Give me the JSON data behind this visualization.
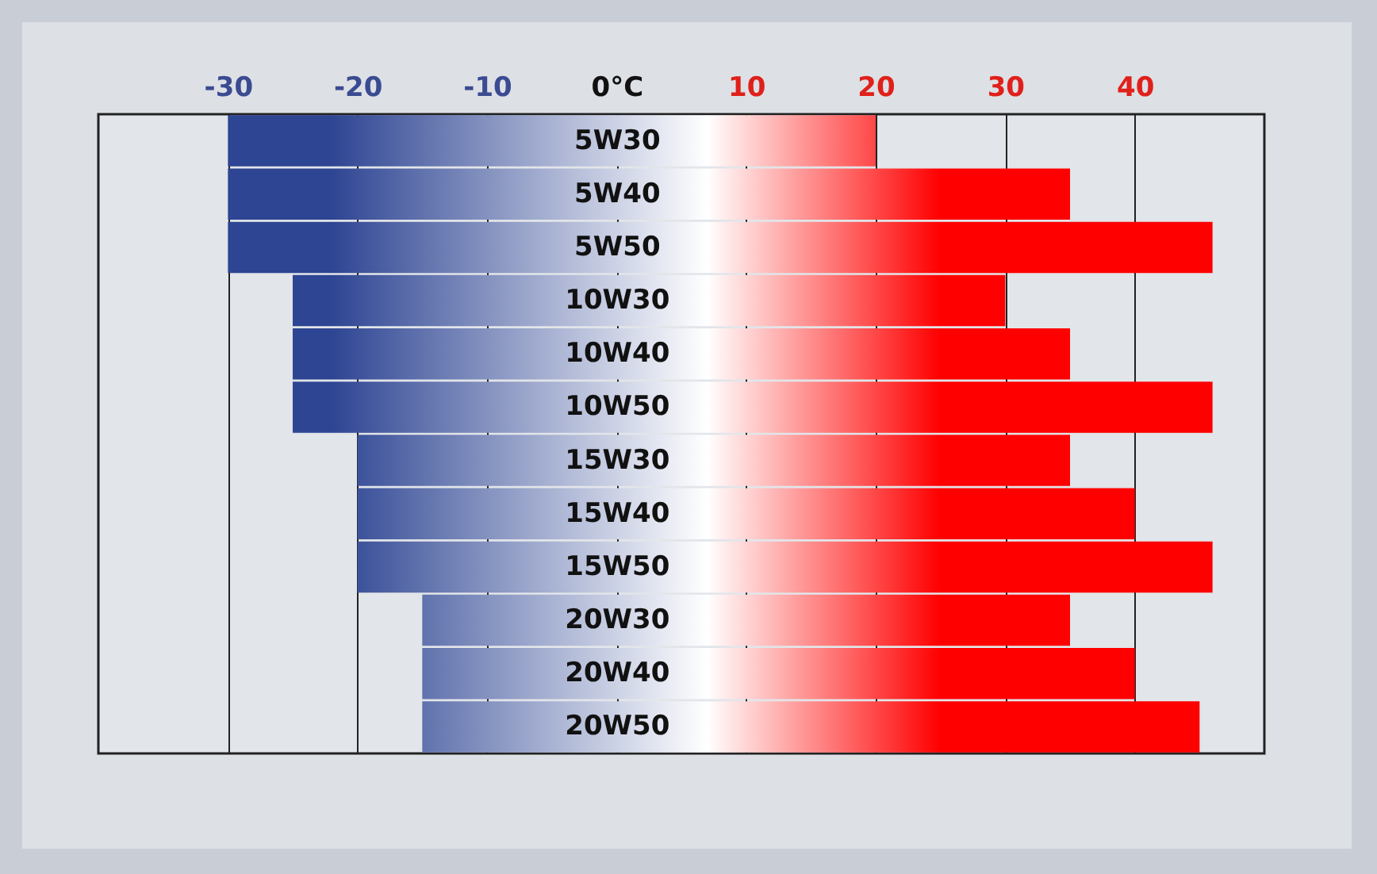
{
  "chart_data": {
    "type": "bar",
    "orientation": "horizontal",
    "categories": [
      "5W30",
      "5W40",
      "5W50",
      "10W30",
      "10W40",
      "10W50",
      "15W30",
      "15W40",
      "15W50",
      "20W30",
      "20W40",
      "20W50"
    ],
    "base": [
      -30,
      -30,
      -30,
      -25,
      -25,
      -25,
      -20,
      -20,
      -20,
      -15,
      -15,
      -15
    ],
    "values": [
      50,
      65,
      76,
      55,
      60,
      71,
      55,
      60,
      66,
      50,
      55,
      60
    ],
    "color": "#ff0000",
    "xlim": [
      -40,
      50
    ],
    "xticks": [
      -30,
      -20,
      -10,
      {
        "value": 0,
        "label": "0°C"
      },
      10,
      20,
      30,
      40
    ],
    "grid": "x"
  }
}
